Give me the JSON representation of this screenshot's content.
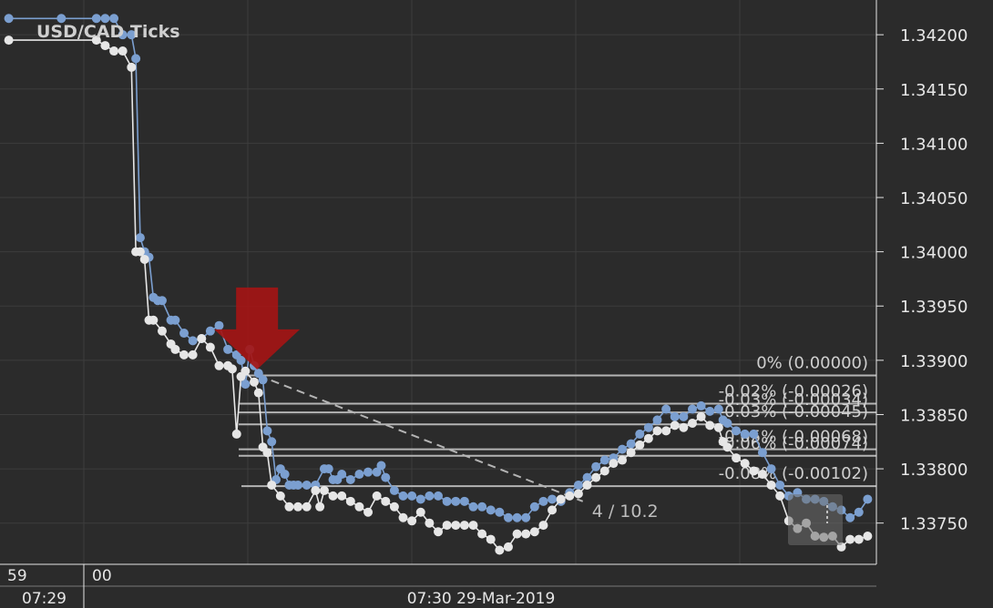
{
  "title": "USD/CAD  Ticks",
  "colors": {
    "background": "#2b2b2b",
    "grid": "#3d3d3d",
    "ask": "#7b9fd0",
    "bid": "#e6e6e6",
    "fib_line": "#b4b4b4",
    "arrow": "#a31515",
    "text": "#e6e6e6"
  },
  "icons": {
    "signal": "sell-arrow-icon"
  },
  "time_axis": {
    "top_labels": [
      "59",
      "00"
    ],
    "bottom_labels": [
      "07:29",
      "07:30 29-Mar-2019"
    ]
  },
  "chart_data": {
    "type": "line",
    "ylim": [
      1.33712,
      1.34232
    ],
    "x_range": [
      -2,
      198
    ],
    "y_ticks": [
      {
        "value": 1.342,
        "label": "1.34200"
      },
      {
        "value": 1.3415,
        "label": "1.34150"
      },
      {
        "value": 1.341,
        "label": "1.34100"
      },
      {
        "value": 1.3405,
        "label": "1.34050"
      },
      {
        "value": 1.34,
        "label": "1.34000"
      },
      {
        "value": 1.3395,
        "label": "1.33950"
      },
      {
        "value": 1.339,
        "label": "1.33900"
      },
      {
        "value": 1.3385,
        "label": "1.33850"
      },
      {
        "value": 1.338,
        "label": "1.33800"
      },
      {
        "value": 1.3375,
        "label": "1.33750"
      }
    ],
    "series": [
      {
        "values": [
          [
            0,
            1.34215
          ],
          [
            12,
            1.34215
          ],
          [
            20,
            1.34215
          ],
          [
            22,
            1.34215
          ],
          [
            24,
            1.34215
          ],
          [
            26,
            1.342
          ],
          [
            28,
            1.342
          ],
          [
            29,
            1.34178
          ],
          [
            30,
            1.34013
          ],
          [
            31,
            1.34
          ],
          [
            32,
            1.33995
          ],
          [
            33,
            1.33958
          ],
          [
            34,
            1.33955
          ],
          [
            35,
            1.33955
          ],
          [
            37,
            1.33937
          ],
          [
            38,
            1.33937
          ],
          [
            40,
            1.33925
          ],
          [
            42,
            1.33918
          ],
          [
            44,
            1.3392
          ],
          [
            46,
            1.33927
          ],
          [
            48,
            1.33932
          ],
          [
            50,
            1.3391
          ],
          [
            52,
            1.33905
          ],
          [
            53,
            1.339
          ],
          [
            54,
            1.33878
          ],
          [
            55,
            1.3391
          ],
          [
            56,
            1.33895
          ],
          [
            57,
            1.33888
          ],
          [
            58,
            1.33882
          ],
          [
            59,
            1.33835
          ],
          [
            60,
            1.33825
          ],
          [
            61,
            1.3379
          ],
          [
            62,
            1.338
          ],
          [
            63,
            1.33795
          ],
          [
            64,
            1.33785
          ],
          [
            65,
            1.33785
          ],
          [
            66,
            1.33785
          ],
          [
            68,
            1.33785
          ],
          [
            70,
            1.33785
          ],
          [
            72,
            1.338
          ],
          [
            73,
            1.338
          ],
          [
            74,
            1.3379
          ],
          [
            75,
            1.3379
          ],
          [
            76,
            1.33795
          ],
          [
            78,
            1.3379
          ],
          [
            80,
            1.33795
          ],
          [
            82,
            1.33797
          ],
          [
            84,
            1.33797
          ],
          [
            85,
            1.33803
          ],
          [
            86,
            1.33792
          ],
          [
            88,
            1.3378
          ],
          [
            90,
            1.33775
          ],
          [
            92,
            1.33775
          ],
          [
            94,
            1.33772
          ],
          [
            96,
            1.33775
          ],
          [
            98,
            1.33775
          ],
          [
            100,
            1.3377
          ],
          [
            102,
            1.3377
          ],
          [
            104,
            1.3377
          ],
          [
            106,
            1.33765
          ],
          [
            108,
            1.33765
          ],
          [
            110,
            1.33762
          ],
          [
            112,
            1.3376
          ],
          [
            114,
            1.33755
          ],
          [
            116,
            1.33755
          ],
          [
            118,
            1.33755
          ],
          [
            120,
            1.33765
          ],
          [
            122,
            1.3377
          ],
          [
            124,
            1.33772
          ],
          [
            126,
            1.3377
          ],
          [
            128,
            1.33778
          ],
          [
            130,
            1.33785
          ],
          [
            132,
            1.33792
          ],
          [
            134,
            1.33802
          ],
          [
            136,
            1.33808
          ],
          [
            138,
            1.3381
          ],
          [
            140,
            1.33818
          ],
          [
            142,
            1.33823
          ],
          [
            144,
            1.33832
          ],
          [
            146,
            1.33838
          ],
          [
            148,
            1.33845
          ],
          [
            150,
            1.33855
          ],
          [
            152,
            1.33848
          ],
          [
            154,
            1.33848
          ],
          [
            156,
            1.33855
          ],
          [
            158,
            1.33858
          ],
          [
            160,
            1.33853
          ],
          [
            162,
            1.33855
          ],
          [
            163,
            1.33845
          ],
          [
            164,
            1.33842
          ],
          [
            166,
            1.33835
          ],
          [
            168,
            1.33832
          ],
          [
            170,
            1.33832
          ],
          [
            172,
            1.33815
          ],
          [
            174,
            1.338
          ],
          [
            176,
            1.33785
          ],
          [
            178,
            1.33775
          ],
          [
            180,
            1.33778
          ],
          [
            182,
            1.33772
          ],
          [
            184,
            1.33772
          ],
          [
            186,
            1.3377
          ],
          [
            188,
            1.33765
          ],
          [
            190,
            1.33762
          ],
          [
            192,
            1.33755
          ],
          [
            194,
            1.3376
          ],
          [
            196,
            1.33772
          ]
        ]
      },
      {
        "values": [
          [
            0,
            1.34195
          ],
          [
            20,
            1.34195
          ],
          [
            22,
            1.3419
          ],
          [
            24,
            1.34185
          ],
          [
            26,
            1.34185
          ],
          [
            28,
            1.3417
          ],
          [
            29,
            1.34
          ],
          [
            30,
            1.34
          ],
          [
            31,
            1.33993
          ],
          [
            32,
            1.33937
          ],
          [
            33,
            1.33937
          ],
          [
            35,
            1.33927
          ],
          [
            37,
            1.33915
          ],
          [
            38,
            1.3391
          ],
          [
            40,
            1.33905
          ],
          [
            42,
            1.33905
          ],
          [
            44,
            1.3392
          ],
          [
            46,
            1.33912
          ],
          [
            48,
            1.33895
          ],
          [
            50,
            1.33895
          ],
          [
            51,
            1.33892
          ],
          [
            52,
            1.33832
          ],
          [
            53,
            1.33885
          ],
          [
            54,
            1.3389
          ],
          [
            56,
            1.3388
          ],
          [
            57,
            1.3387
          ],
          [
            58,
            1.3382
          ],
          [
            59,
            1.33815
          ],
          [
            60,
            1.33785
          ],
          [
            62,
            1.33775
          ],
          [
            64,
            1.33765
          ],
          [
            66,
            1.33765
          ],
          [
            68,
            1.33765
          ],
          [
            70,
            1.3378
          ],
          [
            71,
            1.33765
          ],
          [
            72,
            1.3378
          ],
          [
            74,
            1.33775
          ],
          [
            76,
            1.33775
          ],
          [
            78,
            1.3377
          ],
          [
            80,
            1.33765
          ],
          [
            82,
            1.3376
          ],
          [
            84,
            1.33775
          ],
          [
            86,
            1.3377
          ],
          [
            88,
            1.33765
          ],
          [
            90,
            1.33755
          ],
          [
            92,
            1.33752
          ],
          [
            94,
            1.3376
          ],
          [
            96,
            1.3375
          ],
          [
            98,
            1.33742
          ],
          [
            100,
            1.33748
          ],
          [
            102,
            1.33748
          ],
          [
            104,
            1.33748
          ],
          [
            106,
            1.33748
          ],
          [
            108,
            1.3374
          ],
          [
            110,
            1.33735
          ],
          [
            112,
            1.33725
          ],
          [
            114,
            1.33728
          ],
          [
            116,
            1.3374
          ],
          [
            118,
            1.3374
          ],
          [
            120,
            1.33742
          ],
          [
            122,
            1.33748
          ],
          [
            124,
            1.33762
          ],
          [
            126,
            1.33772
          ],
          [
            128,
            1.33775
          ],
          [
            130,
            1.33777
          ],
          [
            132,
            1.33785
          ],
          [
            134,
            1.33792
          ],
          [
            136,
            1.33798
          ],
          [
            138,
            1.33805
          ],
          [
            140,
            1.33808
          ],
          [
            142,
            1.33815
          ],
          [
            144,
            1.33822
          ],
          [
            146,
            1.33828
          ],
          [
            148,
            1.33835
          ],
          [
            150,
            1.33835
          ],
          [
            152,
            1.3384
          ],
          [
            154,
            1.33838
          ],
          [
            156,
            1.33842
          ],
          [
            158,
            1.33848
          ],
          [
            160,
            1.3384
          ],
          [
            162,
            1.33838
          ],
          [
            163,
            1.33825
          ],
          [
            164,
            1.3382
          ],
          [
            166,
            1.3381
          ],
          [
            168,
            1.33805
          ],
          [
            170,
            1.33798
          ],
          [
            172,
            1.33795
          ],
          [
            174,
            1.33785
          ],
          [
            176,
            1.33775
          ],
          [
            178,
            1.33752
          ],
          [
            180,
            1.33745
          ],
          [
            182,
            1.3375
          ],
          [
            184,
            1.33738
          ],
          [
            186,
            1.33737
          ],
          [
            188,
            1.33738
          ],
          [
            190,
            1.33728
          ],
          [
            192,
            1.33735
          ],
          [
            194,
            1.33735
          ],
          [
            196,
            1.33738
          ]
        ]
      }
    ],
    "fibonacci": [
      {
        "label": "0% (0.00000)",
        "value": 1.33886
      },
      {
        "label": "-0.02% (-0.00026)",
        "value": 1.3386
      },
      {
        "label": "-0.03% (-0.00034)",
        "value": 1.33852
      },
      {
        "label": "-0.03% (-0.00045)",
        "value": 1.33841
      },
      {
        "label": "-0.05% (-0.00068)",
        "value": 1.33818
      },
      {
        "label": "-0.06% (-0.00074)",
        "value": 1.33812
      },
      {
        "label": "-0.08% (-0.00102)",
        "value": 1.33784
      }
    ],
    "trend_line": {
      "from": [
        57,
        1.33886
      ],
      "to": [
        131,
        1.3377
      ],
      "label": "4 / 10.2"
    },
    "signal": {
      "type": "sell",
      "x": 55,
      "y": 1.339
    }
  }
}
